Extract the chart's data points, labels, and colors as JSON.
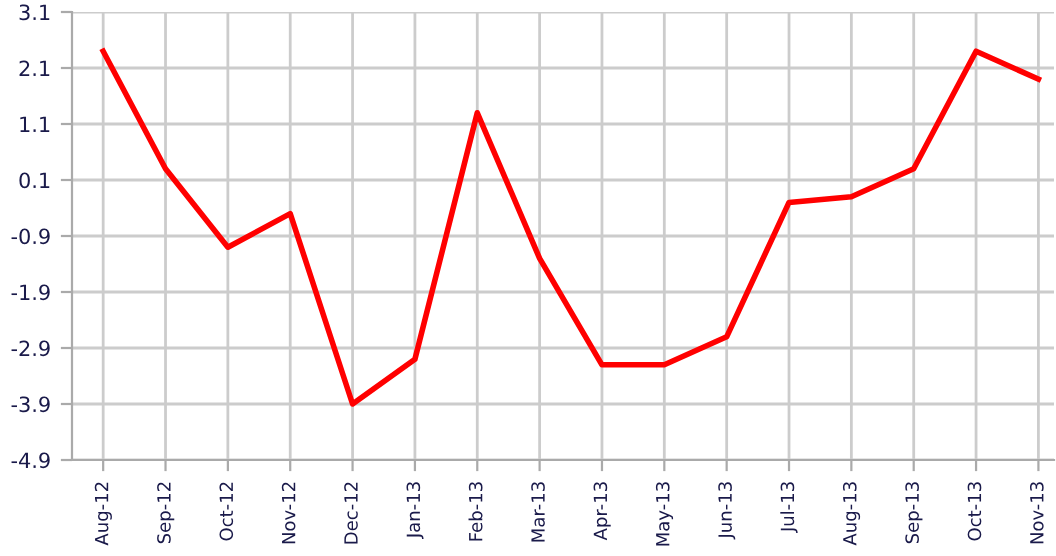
{
  "chart_data": {
    "type": "line",
    "categories": [
      "Aug-12",
      "Sep-12",
      "Oct-12",
      "Nov-12",
      "Dec-12",
      "Jan-13",
      "Feb-13",
      "Mar-13",
      "Apr-13",
      "May-13",
      "Jun-13",
      "Jul-13",
      "Aug-13",
      "Sep-13",
      "Oct-13",
      "Nov-13"
    ],
    "series": [
      {
        "color": "#ff0000",
        "values": [
          2.4,
          0.3,
          -1.1,
          -0.5,
          -3.9,
          -3.1,
          1.3,
          -1.3,
          -3.2,
          -3.2,
          -2.7,
          -0.3,
          -0.2,
          0.3,
          2.4,
          1.9
        ]
      }
    ],
    "ylim": [
      -4.9,
      3.1
    ],
    "yticks": [
      3.1,
      2.1,
      1.1,
      0.1,
      -0.9,
      -1.9,
      -2.9,
      -3.9,
      -4.9
    ],
    "grid": true,
    "marker": "none",
    "line_style": "solid"
  }
}
